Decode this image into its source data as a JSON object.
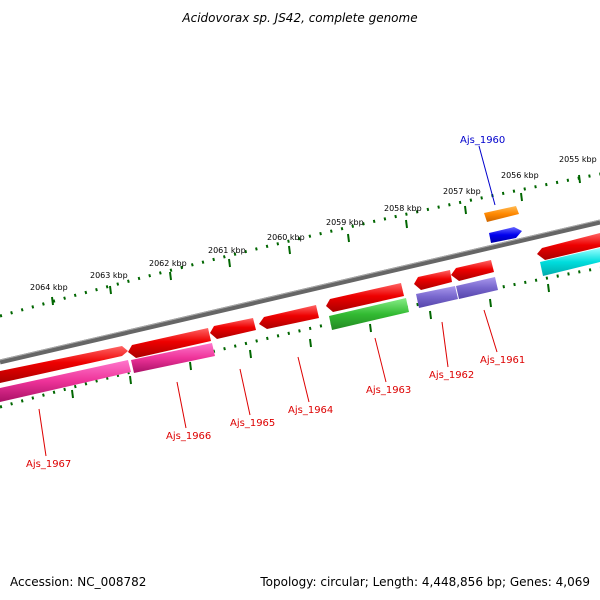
{
  "title": "Acidovorax sp. JS42, complete genome",
  "footer": {
    "accession": "Accession: NC_008782",
    "summary": "Topology: circular; Length: 4,448,856 bp; Genes: 4,069"
  },
  "scale": {
    "unit": "kbp",
    "tick_labels": [
      "2064 kbp",
      "2063 kbp",
      "2062 kbp",
      "2061 kbp",
      "2060 kbp",
      "2059 kbp",
      "2058 kbp",
      "2057 kbp",
      "2056 kbp",
      "2055 kbp"
    ]
  },
  "genes": [
    {
      "name": "Ajs_1960",
      "color": "#0000cc"
    },
    {
      "name": "Ajs_1961",
      "color": "#dd0000"
    },
    {
      "name": "Ajs_1962",
      "color": "#dd0000"
    },
    {
      "name": "Ajs_1963",
      "color": "#dd0000"
    },
    {
      "name": "Ajs_1964",
      "color": "#dd0000"
    },
    {
      "name": "Ajs_1965",
      "color": "#dd0000"
    },
    {
      "name": "Ajs_1966",
      "color": "#dd0000"
    },
    {
      "name": "Ajs_1967",
      "color": "#dd0000"
    }
  ],
  "colors": {
    "backbone": "#777777",
    "tick": "#006600",
    "cds": "#ee0000",
    "cog_orange": "#ff8800",
    "cog_blue": "#0000ee",
    "cog_purple": "#7766cc",
    "cog_green": "#33bb33",
    "cog_magenta": "#dd2299",
    "cog_cyan": "#00dddd"
  }
}
